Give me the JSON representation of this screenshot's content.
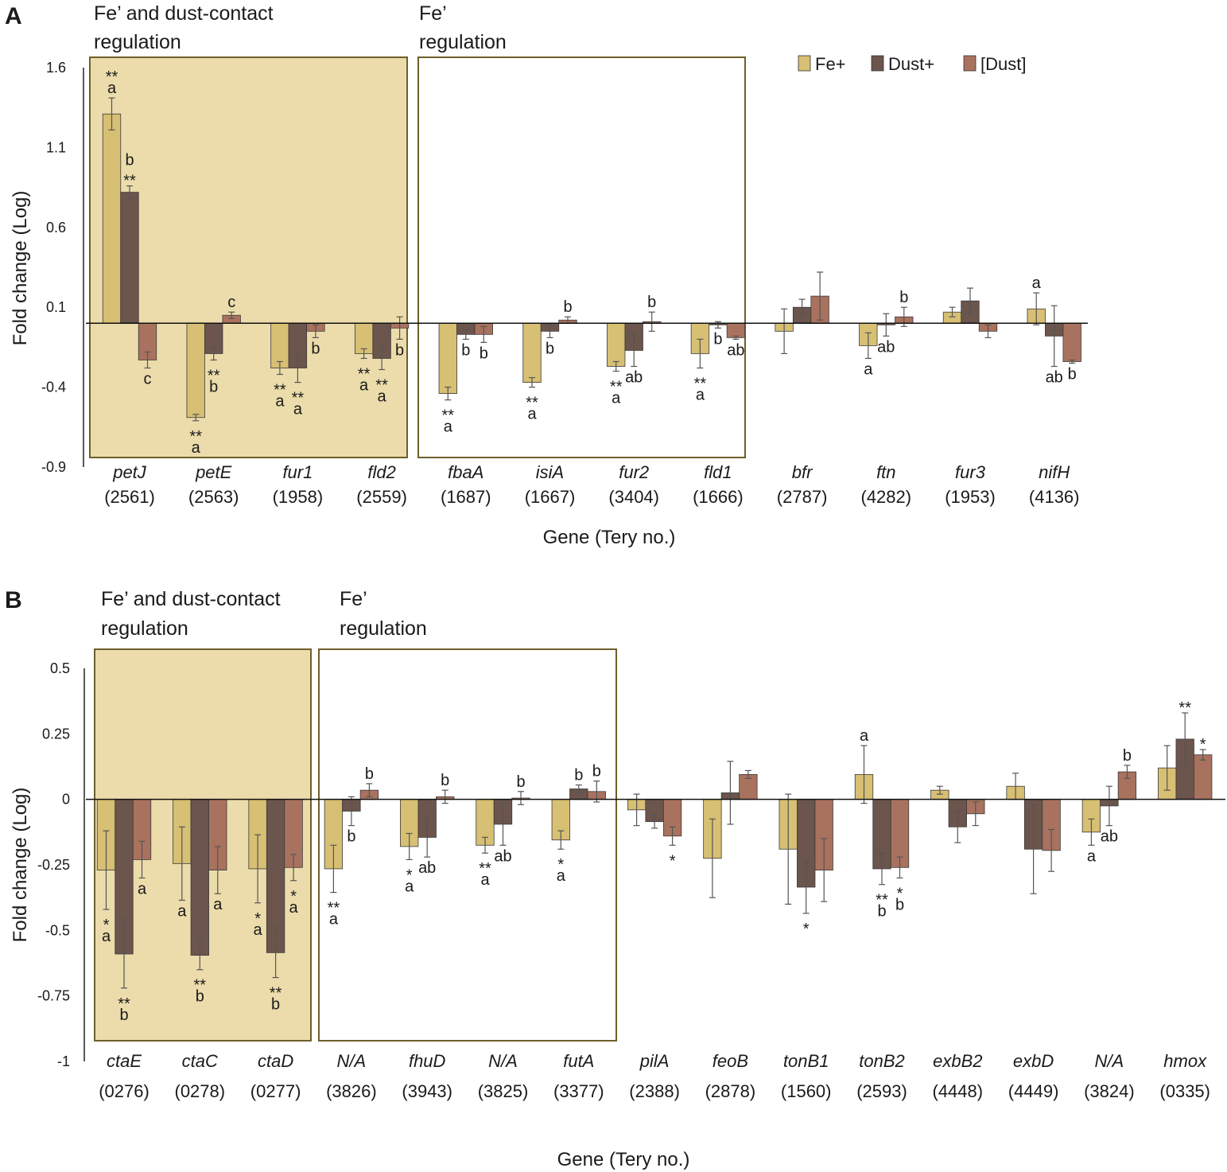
{
  "legend": [
    {
      "key": "fe",
      "label": "Fe+",
      "color": "#d7bf73"
    },
    {
      "key": "dust",
      "label": "Dust+",
      "color": "#6b554c"
    },
    {
      "key": "conc",
      "label": "[Dust]",
      "color": "#a9725f"
    }
  ],
  "chart_data": [
    {
      "type": "bar",
      "panel": "A",
      "xlabel": "Gene (Tery no.)",
      "ylabel": "Fold change (Log)",
      "ylim": [
        -0.9,
        1.6
      ],
      "yticks": [
        "1.6",
        "1.1",
        "0.6",
        "0.1",
        "-0.4",
        "-0.9"
      ],
      "region_shaded": {
        "line1": "Fe’ and dust-contact",
        "line2": "regulation"
      },
      "region_outline": {
        "line1": "Fe’",
        "line2": "regulation"
      },
      "categories": [
        {
          "gene": "petJ",
          "tery": "(2561)"
        },
        {
          "gene": "petE",
          "tery": "(2563)"
        },
        {
          "gene": "fur1",
          "tery": "(1958)"
        },
        {
          "gene": "fld2",
          "tery": "(2559)"
        },
        {
          "gene": "fbaA",
          "tery": "(1687)"
        },
        {
          "gene": "isiA",
          "tery": "(1667)"
        },
        {
          "gene": "fur2",
          "tery": "(3404)"
        },
        {
          "gene": "fld1",
          "tery": "(1666)"
        },
        {
          "gene": "bfr",
          "tery": "(2787)"
        },
        {
          "gene": "ftn",
          "tery": "(4282)"
        },
        {
          "gene": "fur3",
          "tery": "(1953)"
        },
        {
          "gene": "nifH",
          "tery": "(4136)"
        }
      ],
      "series": [
        {
          "name": "Fe+",
          "values": [
            1.31,
            -0.59,
            -0.28,
            -0.19,
            -0.44,
            -0.37,
            -0.27,
            -0.19,
            -0.05,
            -0.14,
            0.07,
            0.09
          ],
          "errors": [
            0.1,
            0.02,
            0.04,
            0.03,
            0.04,
            0.03,
            0.03,
            0.09,
            0.14,
            0.08,
            0.03,
            0.1
          ],
          "labels": [
            "**|a",
            "**|a",
            "**|a",
            "**|a",
            "**|a",
            "**|a",
            "**|a",
            "**|a",
            "",
            "a",
            "",
            "a"
          ]
        },
        {
          "name": "Dust+",
          "values": [
            0.82,
            -0.19,
            -0.28,
            -0.22,
            -0.07,
            -0.05,
            -0.17,
            -0.01,
            0.1,
            -0.01,
            0.14,
            -0.08
          ],
          "errors": [
            0.04,
            0.04,
            0.09,
            0.07,
            0.03,
            0.04,
            0.1,
            0.02,
            0.05,
            0.07,
            0.08,
            0.19
          ],
          "labels": [
            "b|**",
            "**|b",
            "**|a",
            "**|a",
            "b",
            "b",
            "ab",
            "b",
            "",
            "ab",
            "",
            "ab"
          ]
        },
        {
          "name": "[Dust]",
          "values": [
            -0.23,
            0.05,
            -0.05,
            -0.03,
            -0.07,
            0.02,
            0.01,
            -0.09,
            0.17,
            0.04,
            -0.05,
            -0.24
          ],
          "errors": [
            0.05,
            0.02,
            0.04,
            0.07,
            0.05,
            0.02,
            0.06,
            0.01,
            0.15,
            0.06,
            0.04,
            0.01
          ],
          "labels": [
            "c",
            "c",
            "b",
            "b",
            "b",
            "b",
            "b",
            "ab",
            "",
            "b",
            "",
            "b"
          ]
        }
      ]
    },
    {
      "type": "bar",
      "panel": "B",
      "xlabel": "Gene (Tery no.)",
      "ylabel": "Fold change (Log)",
      "ylim": [
        -1,
        0.5
      ],
      "yticks": [
        "0.5",
        "0.25",
        "0",
        "-0.25",
        "-0.5",
        "-0.75",
        "-1"
      ],
      "region_shaded": {
        "line1": "Fe’ and dust-contact",
        "line2": "regulation"
      },
      "region_outline": {
        "line1": "Fe’",
        "line2": "regulation"
      },
      "categories": [
        {
          "gene": "ctaE",
          "tery": "(0276)"
        },
        {
          "gene": "ctaC",
          "tery": "(0278)"
        },
        {
          "gene": "ctaD",
          "tery": "(0277)"
        },
        {
          "gene": "N/A",
          "tery": "(3826)"
        },
        {
          "gene": "fhuD",
          "tery": "(3943)"
        },
        {
          "gene": "N/A",
          "tery": "(3825)"
        },
        {
          "gene": "futA",
          "tery": "(3377)"
        },
        {
          "gene": "pilA",
          "tery": "(2388)"
        },
        {
          "gene": "feoB",
          "tery": "(2878)"
        },
        {
          "gene": "tonB1",
          "tery": "(1560)"
        },
        {
          "gene": "tonB2",
          "tery": "(2593)"
        },
        {
          "gene": "exbB2",
          "tery": "(4448)"
        },
        {
          "gene": "exbD",
          "tery": "(4449)"
        },
        {
          "gene": "N/A",
          "tery": "(3824)"
        },
        {
          "gene": "hmox",
          "tery": "(0335)"
        }
      ],
      "series": [
        {
          "name": "Fe+",
          "values": [
            -0.27,
            -0.245,
            -0.265,
            -0.265,
            -0.18,
            -0.175,
            -0.155,
            -0.04,
            -0.225,
            -0.19,
            0.095,
            0.035,
            0.05,
            -0.125,
            0.12
          ],
          "errors": [
            0.15,
            0.14,
            0.13,
            0.09,
            0.05,
            0.03,
            0.035,
            0.06,
            0.15,
            0.21,
            0.11,
            0.015,
            0.05,
            0.05,
            0.085
          ],
          "labels": [
            "*|a",
            "a",
            "*|a",
            "**|a",
            "*|a",
            "**|a",
            "*|a",
            "",
            "",
            "",
            "a",
            "",
            "",
            "a",
            ""
          ]
        },
        {
          "name": "Dust+",
          "values": [
            -0.59,
            -0.595,
            -0.585,
            -0.045,
            -0.145,
            -0.095,
            0.04,
            -0.085,
            0.025,
            -0.335,
            -0.265,
            -0.105,
            -0.19,
            -0.025,
            0.23
          ],
          "errors": [
            0.13,
            0.055,
            0.095,
            0.055,
            0.075,
            0.08,
            0.015,
            0.025,
            0.12,
            0.1,
            0.06,
            0.06,
            0.17,
            0.075,
            0.1
          ],
          "labels": [
            "**|b",
            "**|b",
            "**|b",
            "b",
            "ab",
            "ab",
            "b",
            "",
            "",
            "*",
            "**|b",
            "",
            "",
            "ab",
            "**"
          ]
        },
        {
          "name": "[Dust]",
          "values": [
            -0.23,
            -0.27,
            -0.26,
            0.035,
            0.01,
            0.005,
            0.03,
            -0.14,
            0.095,
            -0.27,
            -0.26,
            -0.055,
            -0.195,
            0.105,
            0.17
          ],
          "errors": [
            0.07,
            0.09,
            0.05,
            0.025,
            0.025,
            0.025,
            0.04,
            0.035,
            0.015,
            0.12,
            0.04,
            0.045,
            0.08,
            0.025,
            0.02
          ],
          "labels": [
            "a",
            "a",
            "*|a",
            "b",
            "b",
            "b",
            "b",
            "*",
            "",
            "",
            "*|b",
            "",
            "",
            "b",
            "*"
          ]
        }
      ]
    }
  ]
}
